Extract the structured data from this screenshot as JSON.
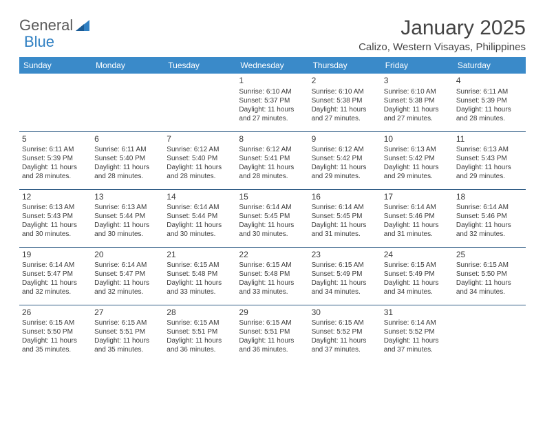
{
  "logo": {
    "text1": "General",
    "text2": "Blue"
  },
  "title": "January 2025",
  "location": "Calizo, Western Visayas, Philippines",
  "colors": {
    "header_bg": "#3a8ac9",
    "header_text": "#ffffff",
    "row_border": "#2f5c85",
    "body_text": "#3a3a3a",
    "logo_gray": "#5a5a5a",
    "logo_blue": "#2f7fc2",
    "background": "#ffffff"
  },
  "typography": {
    "title_fontsize": 30,
    "location_fontsize": 15,
    "header_fontsize": 12,
    "daynum_fontsize": 12,
    "cell_fontsize": 10
  },
  "weekdays": [
    "Sunday",
    "Monday",
    "Tuesday",
    "Wednesday",
    "Thursday",
    "Friday",
    "Saturday"
  ],
  "weeks": [
    [
      null,
      null,
      null,
      {
        "n": "1",
        "sr": "6:10 AM",
        "ss": "5:37 PM",
        "dl": "11 hours and 27 minutes."
      },
      {
        "n": "2",
        "sr": "6:10 AM",
        "ss": "5:38 PM",
        "dl": "11 hours and 27 minutes."
      },
      {
        "n": "3",
        "sr": "6:10 AM",
        "ss": "5:38 PM",
        "dl": "11 hours and 27 minutes."
      },
      {
        "n": "4",
        "sr": "6:11 AM",
        "ss": "5:39 PM",
        "dl": "11 hours and 28 minutes."
      }
    ],
    [
      {
        "n": "5",
        "sr": "6:11 AM",
        "ss": "5:39 PM",
        "dl": "11 hours and 28 minutes."
      },
      {
        "n": "6",
        "sr": "6:11 AM",
        "ss": "5:40 PM",
        "dl": "11 hours and 28 minutes."
      },
      {
        "n": "7",
        "sr": "6:12 AM",
        "ss": "5:40 PM",
        "dl": "11 hours and 28 minutes."
      },
      {
        "n": "8",
        "sr": "6:12 AM",
        "ss": "5:41 PM",
        "dl": "11 hours and 28 minutes."
      },
      {
        "n": "9",
        "sr": "6:12 AM",
        "ss": "5:42 PM",
        "dl": "11 hours and 29 minutes."
      },
      {
        "n": "10",
        "sr": "6:13 AM",
        "ss": "5:42 PM",
        "dl": "11 hours and 29 minutes."
      },
      {
        "n": "11",
        "sr": "6:13 AM",
        "ss": "5:43 PM",
        "dl": "11 hours and 29 minutes."
      }
    ],
    [
      {
        "n": "12",
        "sr": "6:13 AM",
        "ss": "5:43 PM",
        "dl": "11 hours and 30 minutes."
      },
      {
        "n": "13",
        "sr": "6:13 AM",
        "ss": "5:44 PM",
        "dl": "11 hours and 30 minutes."
      },
      {
        "n": "14",
        "sr": "6:14 AM",
        "ss": "5:44 PM",
        "dl": "11 hours and 30 minutes."
      },
      {
        "n": "15",
        "sr": "6:14 AM",
        "ss": "5:45 PM",
        "dl": "11 hours and 30 minutes."
      },
      {
        "n": "16",
        "sr": "6:14 AM",
        "ss": "5:45 PM",
        "dl": "11 hours and 31 minutes."
      },
      {
        "n": "17",
        "sr": "6:14 AM",
        "ss": "5:46 PM",
        "dl": "11 hours and 31 minutes."
      },
      {
        "n": "18",
        "sr": "6:14 AM",
        "ss": "5:46 PM",
        "dl": "11 hours and 32 minutes."
      }
    ],
    [
      {
        "n": "19",
        "sr": "6:14 AM",
        "ss": "5:47 PM",
        "dl": "11 hours and 32 minutes."
      },
      {
        "n": "20",
        "sr": "6:14 AM",
        "ss": "5:47 PM",
        "dl": "11 hours and 32 minutes."
      },
      {
        "n": "21",
        "sr": "6:15 AM",
        "ss": "5:48 PM",
        "dl": "11 hours and 33 minutes."
      },
      {
        "n": "22",
        "sr": "6:15 AM",
        "ss": "5:48 PM",
        "dl": "11 hours and 33 minutes."
      },
      {
        "n": "23",
        "sr": "6:15 AM",
        "ss": "5:49 PM",
        "dl": "11 hours and 34 minutes."
      },
      {
        "n": "24",
        "sr": "6:15 AM",
        "ss": "5:49 PM",
        "dl": "11 hours and 34 minutes."
      },
      {
        "n": "25",
        "sr": "6:15 AM",
        "ss": "5:50 PM",
        "dl": "11 hours and 34 minutes."
      }
    ],
    [
      {
        "n": "26",
        "sr": "6:15 AM",
        "ss": "5:50 PM",
        "dl": "11 hours and 35 minutes."
      },
      {
        "n": "27",
        "sr": "6:15 AM",
        "ss": "5:51 PM",
        "dl": "11 hours and 35 minutes."
      },
      {
        "n": "28",
        "sr": "6:15 AM",
        "ss": "5:51 PM",
        "dl": "11 hours and 36 minutes."
      },
      {
        "n": "29",
        "sr": "6:15 AM",
        "ss": "5:51 PM",
        "dl": "11 hours and 36 minutes."
      },
      {
        "n": "30",
        "sr": "6:15 AM",
        "ss": "5:52 PM",
        "dl": "11 hours and 37 minutes."
      },
      {
        "n": "31",
        "sr": "6:14 AM",
        "ss": "5:52 PM",
        "dl": "11 hours and 37 minutes."
      },
      null
    ]
  ],
  "labels": {
    "sunrise": "Sunrise:",
    "sunset": "Sunset:",
    "daylight": "Daylight:"
  }
}
